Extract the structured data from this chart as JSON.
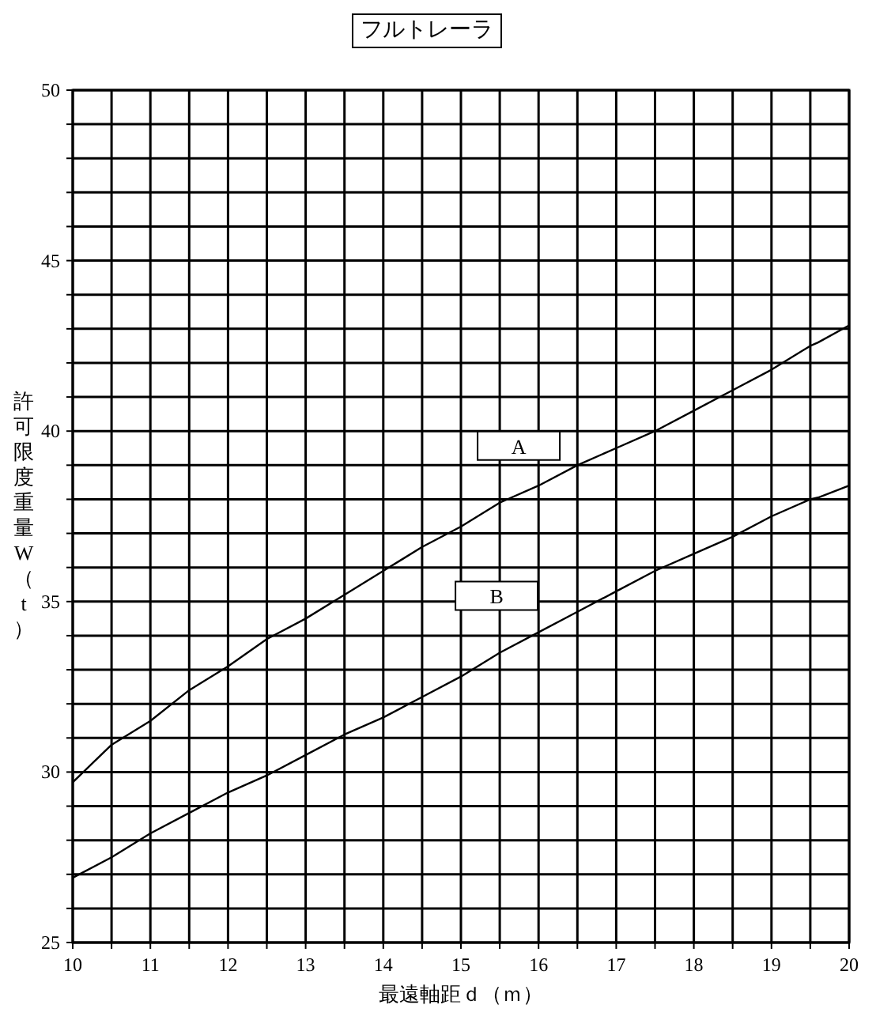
{
  "chart_data": {
    "type": "line",
    "title": "フルトレーラ",
    "xlabel": "最遠軸距ｄ（ｍ）",
    "ylabel": "許可限度重量W（t）",
    "x": [
      10,
      10.5,
      11,
      11.5,
      12,
      12.5,
      13,
      13.5,
      14,
      14.5,
      15,
      15.5,
      16,
      16.5,
      17,
      17.5,
      18,
      18.5,
      19,
      19.5,
      19.6,
      20
    ],
    "series": [
      {
        "name": "A",
        "color": "#000000",
        "values": [
          29.7,
          30.8,
          31.5,
          32.4,
          33.1,
          33.9,
          34.5,
          35.2,
          35.9,
          36.6,
          37.2,
          37.9,
          38.4,
          39.0,
          39.5,
          40.0,
          40.6,
          41.2,
          41.8,
          42.5,
          42.6,
          43.1
        ]
      },
      {
        "name": "B",
        "color": "#000000",
        "values": [
          26.9,
          27.5,
          28.2,
          28.8,
          29.4,
          29.9,
          30.5,
          31.1,
          31.6,
          32.2,
          32.8,
          33.5,
          34.1,
          34.7,
          35.3,
          35.9,
          36.4,
          36.9,
          37.5,
          38.0,
          38.05,
          38.4
        ]
      }
    ],
    "xlim": [
      10,
      20
    ],
    "xticks": [
      10,
      {
        "value": 10.5,
        "label": null
      },
      11,
      {
        "value": 11.5,
        "label": null
      },
      12,
      {
        "value": 12.5,
        "label": null
      },
      13,
      {
        "value": 13.5,
        "label": null
      },
      14,
      {
        "value": 14.5,
        "label": null
      },
      15,
      {
        "value": 15.5,
        "label": null
      },
      16,
      {
        "value": 16.5,
        "label": null
      },
      17,
      {
        "value": 17.5,
        "label": null
      },
      18,
      {
        "value": 18.5,
        "label": null
      },
      19,
      {
        "value": 19.5,
        "label": null
      },
      20
    ],
    "ylim": [
      25,
      50
    ],
    "yticks": [
      25,
      {
        "value": 26,
        "label": null
      },
      {
        "value": 27,
        "label": null
      },
      {
        "value": 28,
        "label": null
      },
      {
        "value": 29,
        "label": null
      },
      30,
      {
        "value": 31,
        "label": null
      },
      {
        "value": 32,
        "label": null
      },
      {
        "value": 33,
        "label": null
      },
      {
        "value": 34,
        "label": null
      },
      35,
      {
        "value": 36,
        "label": null
      },
      {
        "value": 37,
        "label": null
      },
      {
        "value": 38,
        "label": null
      },
      {
        "value": 39,
        "label": null
      },
      40,
      {
        "value": 41,
        "label": null
      },
      {
        "value": 42,
        "label": null
      },
      {
        "value": 43,
        "label": null
      },
      {
        "value": 44,
        "label": null
      },
      45,
      {
        "value": 46,
        "label": null
      },
      {
        "value": 47,
        "label": null
      },
      {
        "value": 48,
        "label": null
      },
      {
        "value": 49,
        "label": null
      },
      50
    ],
    "grid": true,
    "line_style": "solid",
    "marker": "none"
  }
}
